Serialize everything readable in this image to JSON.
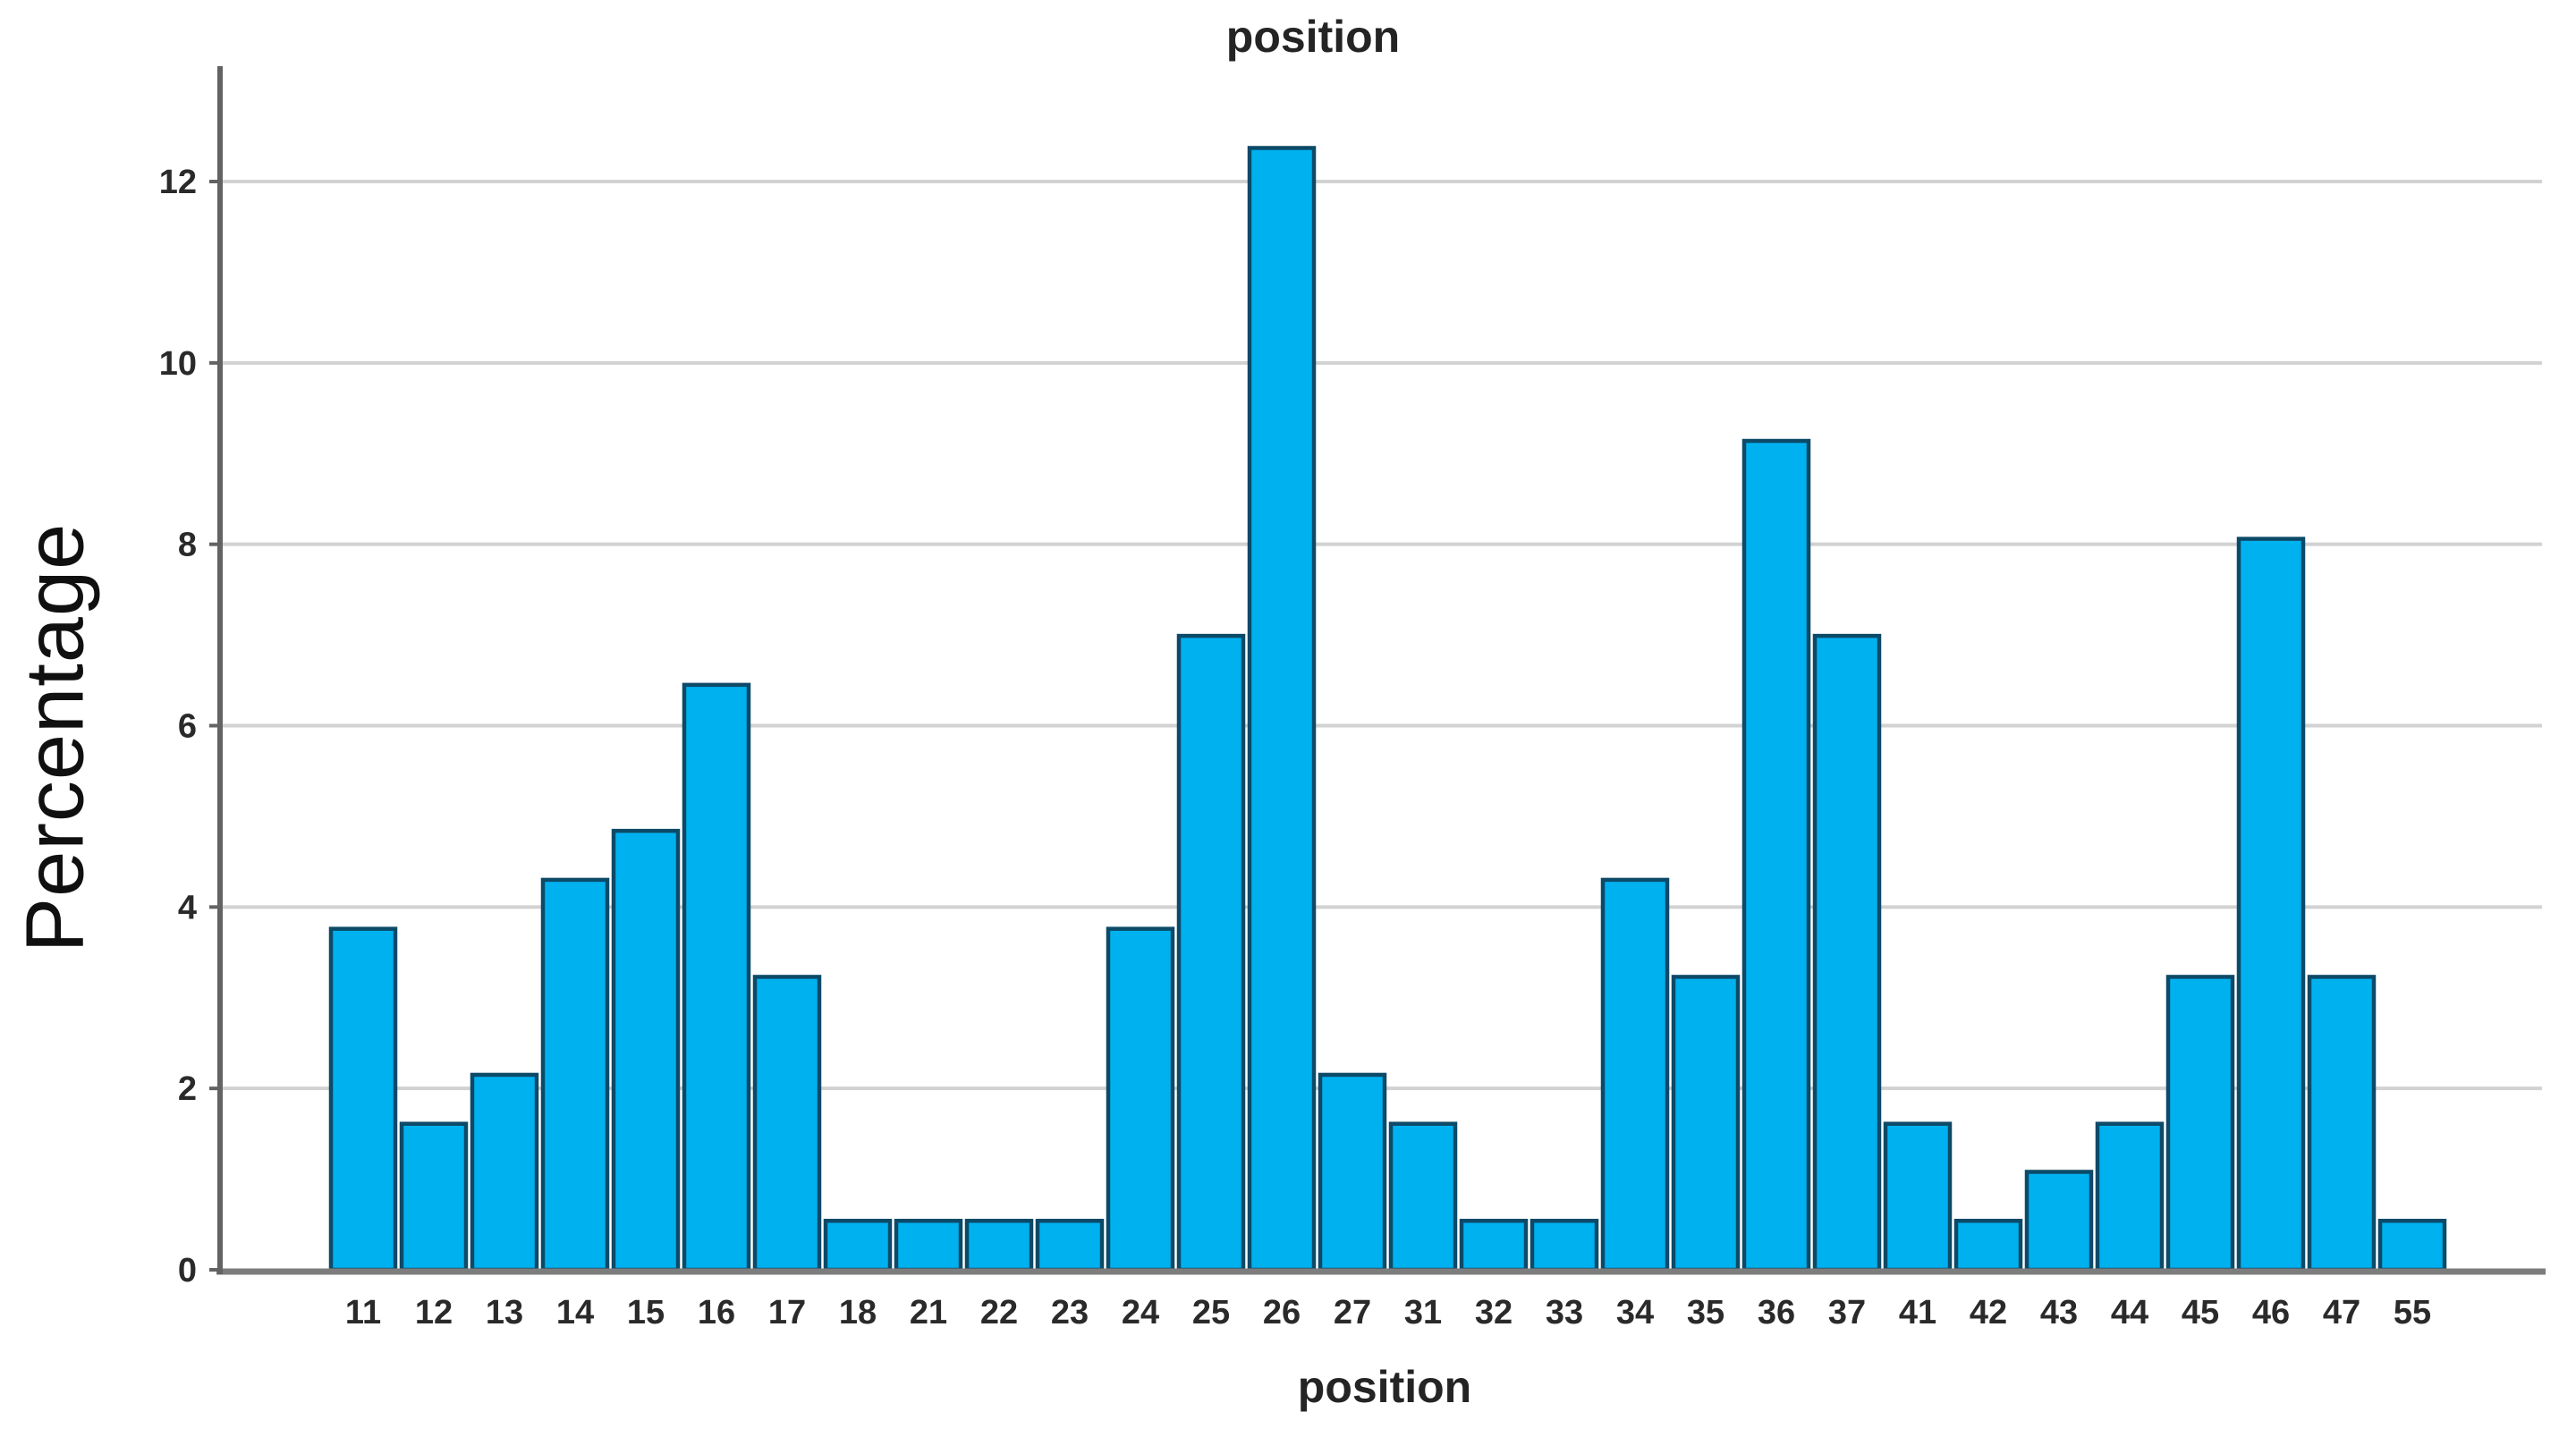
{
  "chart_data": {
    "type": "bar",
    "title": "position",
    "xlabel": "position",
    "ylabel": "Percentage",
    "categories": [
      "11",
      "12",
      "13",
      "14",
      "15",
      "16",
      "17",
      "18",
      "21",
      "22",
      "23",
      "24",
      "25",
      "26",
      "27",
      "31",
      "32",
      "33",
      "34",
      "35",
      "36",
      "37",
      "41",
      "42",
      "43",
      "44",
      "45",
      "46",
      "47",
      "55"
    ],
    "values": [
      3.76,
      1.61,
      2.15,
      4.3,
      4.84,
      6.45,
      3.23,
      0.54,
      0.54,
      0.54,
      0.54,
      3.76,
      6.99,
      12.37,
      2.15,
      1.61,
      0.54,
      0.54,
      4.3,
      3.23,
      9.14,
      6.99,
      1.61,
      0.54,
      1.08,
      1.61,
      3.23,
      8.06,
      3.23,
      0.54
    ],
    "yticks": [
      0,
      2,
      4,
      6,
      8,
      10,
      12
    ],
    "ytick_labels": [
      "0",
      "2",
      "4",
      "6",
      "8",
      "10",
      "12"
    ],
    "ylim": [
      0,
      13.3
    ],
    "grid": true,
    "legend_position": "none",
    "colors": {
      "bar_fill": "#00b1ef",
      "bar_border": "#0c4a68",
      "gridline": "#d2d2d2",
      "y_axis": "#636363",
      "baseline": "#7d7d7d",
      "tick_text": "#2a2a2a",
      "title_text": "#242424"
    }
  }
}
